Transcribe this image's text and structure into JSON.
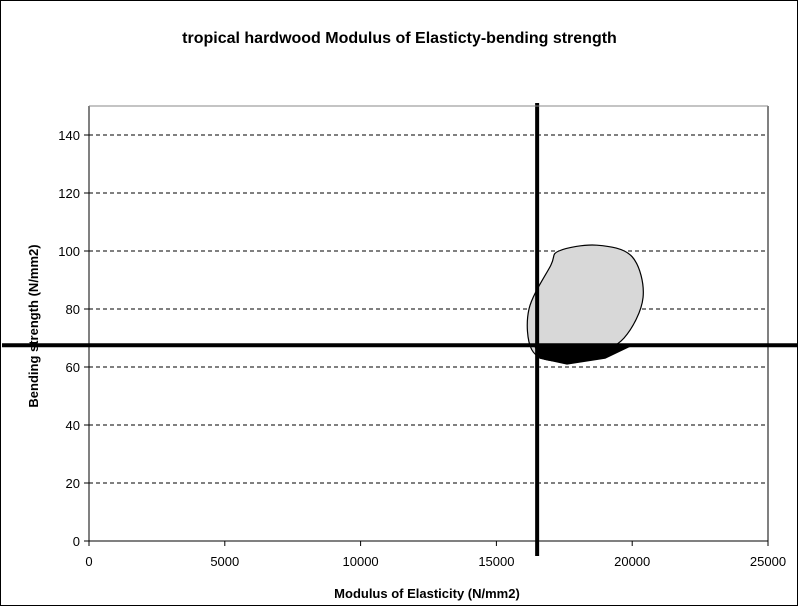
{
  "chart_data": {
    "type": "scatter",
    "title": "tropical hardwood Modulus of Elasticty-bending strength",
    "xlabel": "Modulus of Elasticity (N/mm2)",
    "ylabel": "Bending strength (N/mm2)",
    "xlim": [
      0,
      25000
    ],
    "ylim": [
      0,
      150
    ],
    "xticks": [
      0,
      5000,
      10000,
      15000,
      20000,
      25000
    ],
    "yticks": [
      0,
      20,
      40,
      60,
      80,
      100,
      120,
      140
    ],
    "grid": "horizontal dashed",
    "legend": "none",
    "reference_lines": {
      "vertical_x": 16500,
      "horizontal_y": 67.5
    },
    "regions": [
      {
        "shape": "ellipse",
        "fill": "#d8d8d8",
        "points_x": [
          17000,
          16200,
          16300,
          17200,
          18500,
          19700,
          20400,
          20000,
          18700,
          17300
        ],
        "points_y": [
          95,
          80,
          66,
          62,
          64,
          70,
          84,
          98,
          102,
          100
        ]
      },
      {
        "shape": "filled-segment",
        "fill": "#000000",
        "points_x": [
          16400,
          20000,
          19000,
          17600,
          16600
        ],
        "points_y": [
          67.5,
          67.5,
          63,
          61,
          63
        ]
      }
    ]
  }
}
